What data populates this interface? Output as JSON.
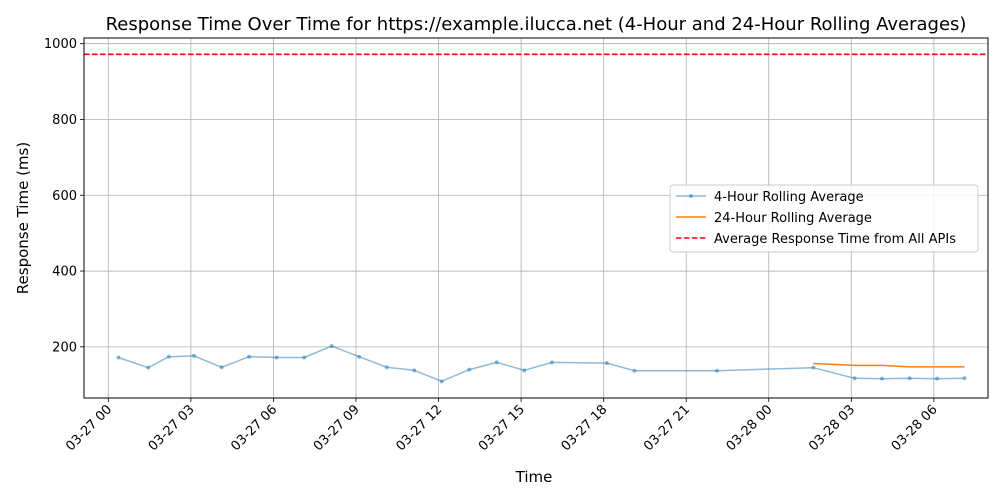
{
  "chart_data": {
    "type": "line",
    "title": "Response Time Over Time for https://example.ilucca.net (4-Hour and 24-Hour Rolling Averages)",
    "xlabel": "Time",
    "ylabel": "Response Time (ms)",
    "xlim": [
      "2024-03-26T23:07",
      "2024-03-28T07:58"
    ],
    "ylim": [
      65,
      1015
    ],
    "grid": true,
    "legend_position": "center-right",
    "x_ticks": [
      {
        "t": "2024-03-27T00:00",
        "label": "03-27 00"
      },
      {
        "t": "2024-03-27T03:00",
        "label": "03-27 03"
      },
      {
        "t": "2024-03-27T06:00",
        "label": "03-27 06"
      },
      {
        "t": "2024-03-27T09:00",
        "label": "03-27 09"
      },
      {
        "t": "2024-03-27T12:00",
        "label": "03-27 12"
      },
      {
        "t": "2024-03-27T15:00",
        "label": "03-27 15"
      },
      {
        "t": "2024-03-27T18:00",
        "label": "03-27 18"
      },
      {
        "t": "2024-03-27T21:00",
        "label": "03-27 21"
      },
      {
        "t": "2024-03-28T00:00",
        "label": "03-28 00"
      },
      {
        "t": "2024-03-28T03:00",
        "label": "03-28 03"
      },
      {
        "t": "2024-03-28T06:00",
        "label": "03-28 06"
      }
    ],
    "y_ticks": [
      200,
      400,
      600,
      800,
      1000
    ],
    "series": [
      {
        "name": "4-Hour Rolling Average",
        "color": "#1f77b4",
        "opacity": 0.5,
        "marker": true,
        "points": [
          {
            "t": "2024-03-27T00:22",
            "v": 172
          },
          {
            "t": "2024-03-27T01:27",
            "v": 145
          },
          {
            "t": "2024-03-27T02:12",
            "v": 174
          },
          {
            "t": "2024-03-27T03:07",
            "v": 176
          },
          {
            "t": "2024-03-27T04:07",
            "v": 146
          },
          {
            "t": "2024-03-27T05:07",
            "v": 174
          },
          {
            "t": "2024-03-27T06:07",
            "v": 172
          },
          {
            "t": "2024-03-27T07:07",
            "v": 172
          },
          {
            "t": "2024-03-27T08:07",
            "v": 202
          },
          {
            "t": "2024-03-27T09:07",
            "v": 174
          },
          {
            "t": "2024-03-27T10:07",
            "v": 146
          },
          {
            "t": "2024-03-27T11:07",
            "v": 138
          },
          {
            "t": "2024-03-27T12:07",
            "v": 109
          },
          {
            "t": "2024-03-27T13:07",
            "v": 140
          },
          {
            "t": "2024-03-27T14:07",
            "v": 159
          },
          {
            "t": "2024-03-27T15:07",
            "v": 138
          },
          {
            "t": "2024-03-27T16:07",
            "v": 159
          },
          {
            "t": "2024-03-27T18:07",
            "v": 157
          },
          {
            "t": "2024-03-27T19:07",
            "v": 137
          },
          {
            "t": "2024-03-27T22:07",
            "v": 137
          },
          {
            "t": "2024-03-28T01:37",
            "v": 145
          },
          {
            "t": "2024-03-28T03:07",
            "v": 117
          },
          {
            "t": "2024-03-28T04:07",
            "v": 116
          },
          {
            "t": "2024-03-28T05:07",
            "v": 117
          },
          {
            "t": "2024-03-28T06:07",
            "v": 116
          },
          {
            "t": "2024-03-28T07:07",
            "v": 117
          }
        ]
      },
      {
        "name": "24-Hour Rolling Average",
        "color": "#ff7f0e",
        "opacity": 1,
        "marker": false,
        "points": [
          {
            "t": "2024-03-28T01:37",
            "v": 156
          },
          {
            "t": "2024-03-28T03:07",
            "v": 151
          },
          {
            "t": "2024-03-28T04:07",
            "v": 151
          },
          {
            "t": "2024-03-28T05:07",
            "v": 147
          },
          {
            "t": "2024-03-28T06:07",
            "v": 147
          },
          {
            "t": "2024-03-28T07:07",
            "v": 147
          }
        ]
      }
    ],
    "hline": {
      "name": "Average Response Time from All APIs",
      "value": 972,
      "color": "#ff0000",
      "style": "dashed"
    }
  }
}
